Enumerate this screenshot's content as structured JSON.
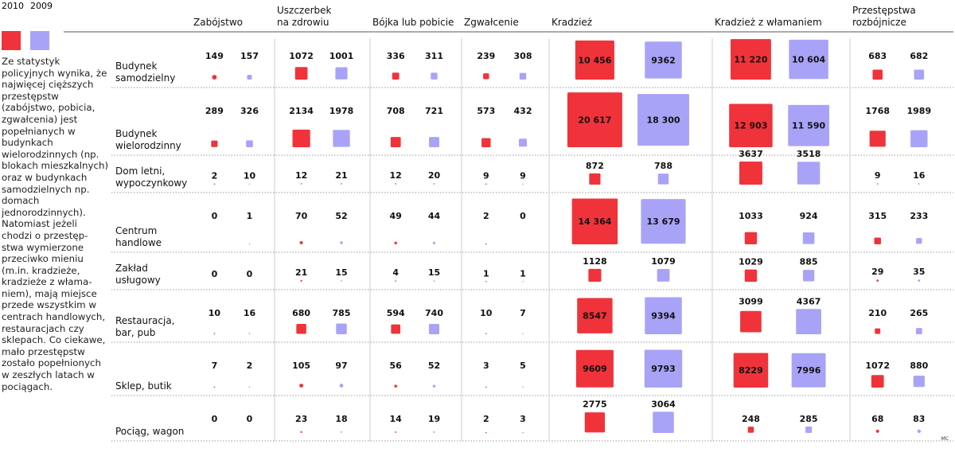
{
  "legend": [
    {
      "year": "2010",
      "color": "#f0333a"
    },
    {
      "year": "2009",
      "color": "#a9a3f7"
    }
  ],
  "intro": "Ze statystyk policyjnych wynika, że najwięcej cięższych przestępstw (zabójstwo, pobicia, zgwałcenia) jest popełnianych w budynkach wielorodzinnych (np. blokach mieszkalnych) oraz w budynkach samodzielnych np. domach jednorodzinnych). Natomiast jeżeli chodzi o przestęp-stwa wymierzone przeciwko mieniu (m.in. kradzieże, kradzieże z włama-niem), mają miejsce przede wszystkim w centrach handlowych, restauracjach czy sklepach. Co ciekawe, mało przestępstw zostało popełnionych w zeszłych latach w pociągach.",
  "credit": "MC",
  "chart_data": {
    "type": "table",
    "encoding": "square area proportional to value",
    "series": [
      "2010",
      "2009"
    ],
    "categories": [
      [
        "Zabójstwo"
      ],
      [
        "Uszczerbek",
        "na zdrowiu"
      ],
      [
        "Bójka lub pobicie"
      ],
      [
        "Zgwałcenie"
      ],
      [
        "Kradzież"
      ],
      [
        "Kradzież z włamaniem"
      ],
      [
        "Przestępstwa",
        "rozbójnicze"
      ]
    ],
    "rows": [
      {
        "label": [
          "Budynek",
          "samodzielny"
        ],
        "values": [
          [
            149,
            157
          ],
          [
            1072,
            1001
          ],
          [
            336,
            311
          ],
          [
            239,
            308
          ],
          [
            10456,
            9362
          ],
          [
            11220,
            10604
          ],
          [
            683,
            682
          ]
        ],
        "display": [
          [
            "149",
            "157"
          ],
          [
            "1072",
            "1001"
          ],
          [
            "336",
            "311"
          ],
          [
            "239",
            "308"
          ],
          [
            "10 456",
            "9362"
          ],
          [
            "11 220",
            "10 604"
          ],
          [
            "683",
            "682"
          ]
        ]
      },
      {
        "label": [
          "Budynek",
          "wielorodzinny"
        ],
        "values": [
          [
            289,
            326
          ],
          [
            2134,
            1978
          ],
          [
            708,
            721
          ],
          [
            573,
            432
          ],
          [
            20617,
            18300
          ],
          [
            12903,
            11590
          ],
          [
            1768,
            1989
          ]
        ],
        "display": [
          [
            "289",
            "326"
          ],
          [
            "2134",
            "1978"
          ],
          [
            "708",
            "721"
          ],
          [
            "573",
            "432"
          ],
          [
            "20 617",
            "18 300"
          ],
          [
            "12 903",
            "11 590"
          ],
          [
            "1768",
            "1989"
          ]
        ]
      },
      {
        "label": [
          "Dom letni,",
          "wypoczynkowy"
        ],
        "values": [
          [
            2,
            10
          ],
          [
            12,
            21
          ],
          [
            12,
            20
          ],
          [
            9,
            9
          ],
          [
            872,
            788
          ],
          [
            3637,
            3518
          ],
          [
            9,
            16
          ]
        ],
        "display": [
          [
            "2",
            "10"
          ],
          [
            "12",
            "21"
          ],
          [
            "12",
            "20"
          ],
          [
            "9",
            "9"
          ],
          [
            "872",
            "788"
          ],
          [
            "3637",
            "3518"
          ],
          [
            "9",
            "16"
          ]
        ]
      },
      {
        "label": [
          "Centrum",
          "handlowe"
        ],
        "values": [
          [
            0,
            1
          ],
          [
            70,
            52
          ],
          [
            49,
            44
          ],
          [
            2,
            0
          ],
          [
            14364,
            13679
          ],
          [
            1033,
            924
          ],
          [
            315,
            233
          ]
        ],
        "display": [
          [
            "0",
            "1"
          ],
          [
            "70",
            "52"
          ],
          [
            "49",
            "44"
          ],
          [
            "2",
            "0"
          ],
          [
            "14 364",
            "13 679"
          ],
          [
            "1033",
            "924"
          ],
          [
            "315",
            "233"
          ]
        ]
      },
      {
        "label": [
          "Zakład",
          "usługowy"
        ],
        "values": [
          [
            0,
            0
          ],
          [
            21,
            15
          ],
          [
            4,
            15
          ],
          [
            1,
            1
          ],
          [
            1128,
            1079
          ],
          [
            1029,
            885
          ],
          [
            29,
            35
          ]
        ],
        "display": [
          [
            "0",
            "0"
          ],
          [
            "21",
            "15"
          ],
          [
            "4",
            "15"
          ],
          [
            "1",
            "1"
          ],
          [
            "1128",
            "1079"
          ],
          [
            "1029",
            "885"
          ],
          [
            "29",
            "35"
          ]
        ]
      },
      {
        "label": [
          "Restauracja,",
          "bar, pub"
        ],
        "values": [
          [
            10,
            16
          ],
          [
            680,
            785
          ],
          [
            594,
            740
          ],
          [
            10,
            7
          ],
          [
            8547,
            9394
          ],
          [
            3099,
            4367
          ],
          [
            210,
            265
          ]
        ],
        "display": [
          [
            "10",
            "16"
          ],
          [
            "680",
            "785"
          ],
          [
            "594",
            "740"
          ],
          [
            "10",
            "7"
          ],
          [
            "8547",
            "9394"
          ],
          [
            "3099",
            "4367"
          ],
          [
            "210",
            "265"
          ]
        ]
      },
      {
        "label": [
          "Sklep, butik"
        ],
        "values": [
          [
            7,
            2
          ],
          [
            105,
            97
          ],
          [
            56,
            52
          ],
          [
            3,
            5
          ],
          [
            9609,
            9793
          ],
          [
            8229,
            7996
          ],
          [
            1072,
            880
          ]
        ],
        "display": [
          [
            "7",
            "2"
          ],
          [
            "105",
            "97"
          ],
          [
            "56",
            "52"
          ],
          [
            "3",
            "5"
          ],
          [
            "9609",
            "9793"
          ],
          [
            "8229",
            "7996"
          ],
          [
            "1072",
            "880"
          ]
        ]
      },
      {
        "label": [
          "Pociąg, wagon"
        ],
        "values": [
          [
            0,
            0
          ],
          [
            23,
            18
          ],
          [
            14,
            19
          ],
          [
            2,
            3
          ],
          [
            2775,
            3064
          ],
          [
            248,
            285
          ],
          [
            68,
            83
          ]
        ],
        "display": [
          [
            "0",
            "0"
          ],
          [
            "23",
            "18"
          ],
          [
            "14",
            "19"
          ],
          [
            "2",
            "3"
          ],
          [
            "2775",
            "3064"
          ],
          [
            "248",
            "285"
          ],
          [
            "68",
            "83"
          ]
        ]
      }
    ]
  }
}
